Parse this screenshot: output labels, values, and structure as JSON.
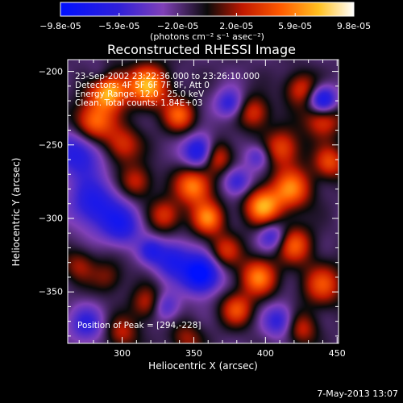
{
  "colorbar": {
    "ticks": [
      "-9.8e-05",
      "-5.9e-05",
      "-2.0e-05",
      "2.0e-05",
      "5.9e-05",
      "9.8e-05"
    ],
    "label": "(photons cm⁻² s⁻¹ asec⁻²)"
  },
  "chart_data": {
    "type": "heatmap",
    "title": "Reconstructed RHESSI Image",
    "xlabel": "Heliocentric X (arcsec)",
    "ylabel": "Heliocentric Y (arcsec)",
    "xlim": [
      262,
      451
    ],
    "ylim": [
      -385,
      -192
    ],
    "x_ticks": [
      "300",
      "350",
      "400",
      "450"
    ],
    "y_ticks": [
      "-200",
      "-250",
      "-300",
      "-350"
    ],
    "zlim": [
      -9.8e-05,
      9.8e-05
    ],
    "annotations": [
      "23-Sep-2002 23:22:36.000 to 23:26:10.000",
      "Detectors: 4F 5F 6F 7F 8F, Att 0",
      "Energy Range: 12.0 - 25.0 keV",
      "Clean. Total counts: 1.84E+03",
      "Position of Peak = [294,-228]"
    ],
    "peak": {
      "x": 294,
      "y": -228
    },
    "sources": [
      {
        "x": 290,
        "y": -212,
        "v": 1.0,
        "s": 9
      },
      {
        "x": 280,
        "y": -235,
        "v": 0.75,
        "s": 10
      },
      {
        "x": 318,
        "y": -210,
        "v": 0.85,
        "s": 10
      },
      {
        "x": 300,
        "y": -250,
        "v": 0.5,
        "s": 9
      },
      {
        "x": 340,
        "y": -230,
        "v": 0.6,
        "s": 8
      },
      {
        "x": 365,
        "y": -258,
        "v": 0.65,
        "s": 8
      },
      {
        "x": 350,
        "y": -278,
        "v": 0.75,
        "s": 9
      },
      {
        "x": 330,
        "y": -298,
        "v": 0.5,
        "s": 8
      },
      {
        "x": 310,
        "y": -275,
        "v": 0.45,
        "s": 8
      },
      {
        "x": 360,
        "y": -300,
        "v": 0.7,
        "s": 8
      },
      {
        "x": 372,
        "y": -322,
        "v": 0.45,
        "s": 8
      },
      {
        "x": 398,
        "y": -292,
        "v": 0.8,
        "s": 9
      },
      {
        "x": 418,
        "y": -280,
        "v": 0.7,
        "s": 10
      },
      {
        "x": 412,
        "y": -252,
        "v": 0.55,
        "s": 9
      },
      {
        "x": 392,
        "y": -228,
        "v": 0.5,
        "s": 8
      },
      {
        "x": 440,
        "y": -232,
        "v": 0.6,
        "s": 9
      },
      {
        "x": 425,
        "y": -212,
        "v": 0.5,
        "s": 8
      },
      {
        "x": 445,
        "y": -262,
        "v": 0.55,
        "s": 8
      },
      {
        "x": 420,
        "y": -318,
        "v": 0.6,
        "s": 9
      },
      {
        "x": 395,
        "y": -340,
        "v": 0.7,
        "s": 9
      },
      {
        "x": 440,
        "y": -345,
        "v": 0.55,
        "s": 10
      },
      {
        "x": 380,
        "y": -362,
        "v": 0.55,
        "s": 8
      },
      {
        "x": 318,
        "y": -358,
        "v": 0.45,
        "s": 8
      },
      {
        "x": 300,
        "y": -378,
        "v": 0.4,
        "s": 8
      },
      {
        "x": 345,
        "y": -382,
        "v": 0.35,
        "s": 8
      },
      {
        "x": 425,
        "y": -375,
        "v": 0.45,
        "s": 8
      },
      {
        "x": 270,
        "y": -332,
        "v": 0.35,
        "s": 8
      },
      {
        "x": 290,
        "y": -340,
        "v": 0.3,
        "s": 8
      },
      {
        "x": 355,
        "y": -255,
        "v": -0.85,
        "s": 8
      },
      {
        "x": 440,
        "y": -220,
        "v": -0.85,
        "s": 7
      },
      {
        "x": 355,
        "y": -338,
        "v": -0.95,
        "s": 9
      },
      {
        "x": 335,
        "y": -328,
        "v": -0.6,
        "s": 9
      },
      {
        "x": 270,
        "y": -255,
        "v": -0.6,
        "s": 12
      },
      {
        "x": 280,
        "y": -290,
        "v": -0.6,
        "s": 12
      },
      {
        "x": 300,
        "y": -305,
        "v": -0.55,
        "s": 10
      },
      {
        "x": 285,
        "y": -205,
        "v": -0.4,
        "s": 7
      },
      {
        "x": 375,
        "y": -222,
        "v": -0.5,
        "s": 7
      },
      {
        "x": 380,
        "y": -275,
        "v": -0.5,
        "s": 7
      },
      {
        "x": 405,
        "y": -312,
        "v": -0.5,
        "s": 7
      },
      {
        "x": 330,
        "y": -360,
        "v": -0.45,
        "s": 7
      },
      {
        "x": 410,
        "y": -370,
        "v": -0.5,
        "s": 8
      },
      {
        "x": 320,
        "y": -322,
        "v": -0.4,
        "s": 6
      },
      {
        "x": 275,
        "y": -372,
        "v": -0.45,
        "s": 9
      },
      {
        "x": 395,
        "y": -258,
        "v": -0.4,
        "s": 6
      }
    ]
  },
  "footer": {
    "timestamp": "7-May-2013 13:07"
  }
}
